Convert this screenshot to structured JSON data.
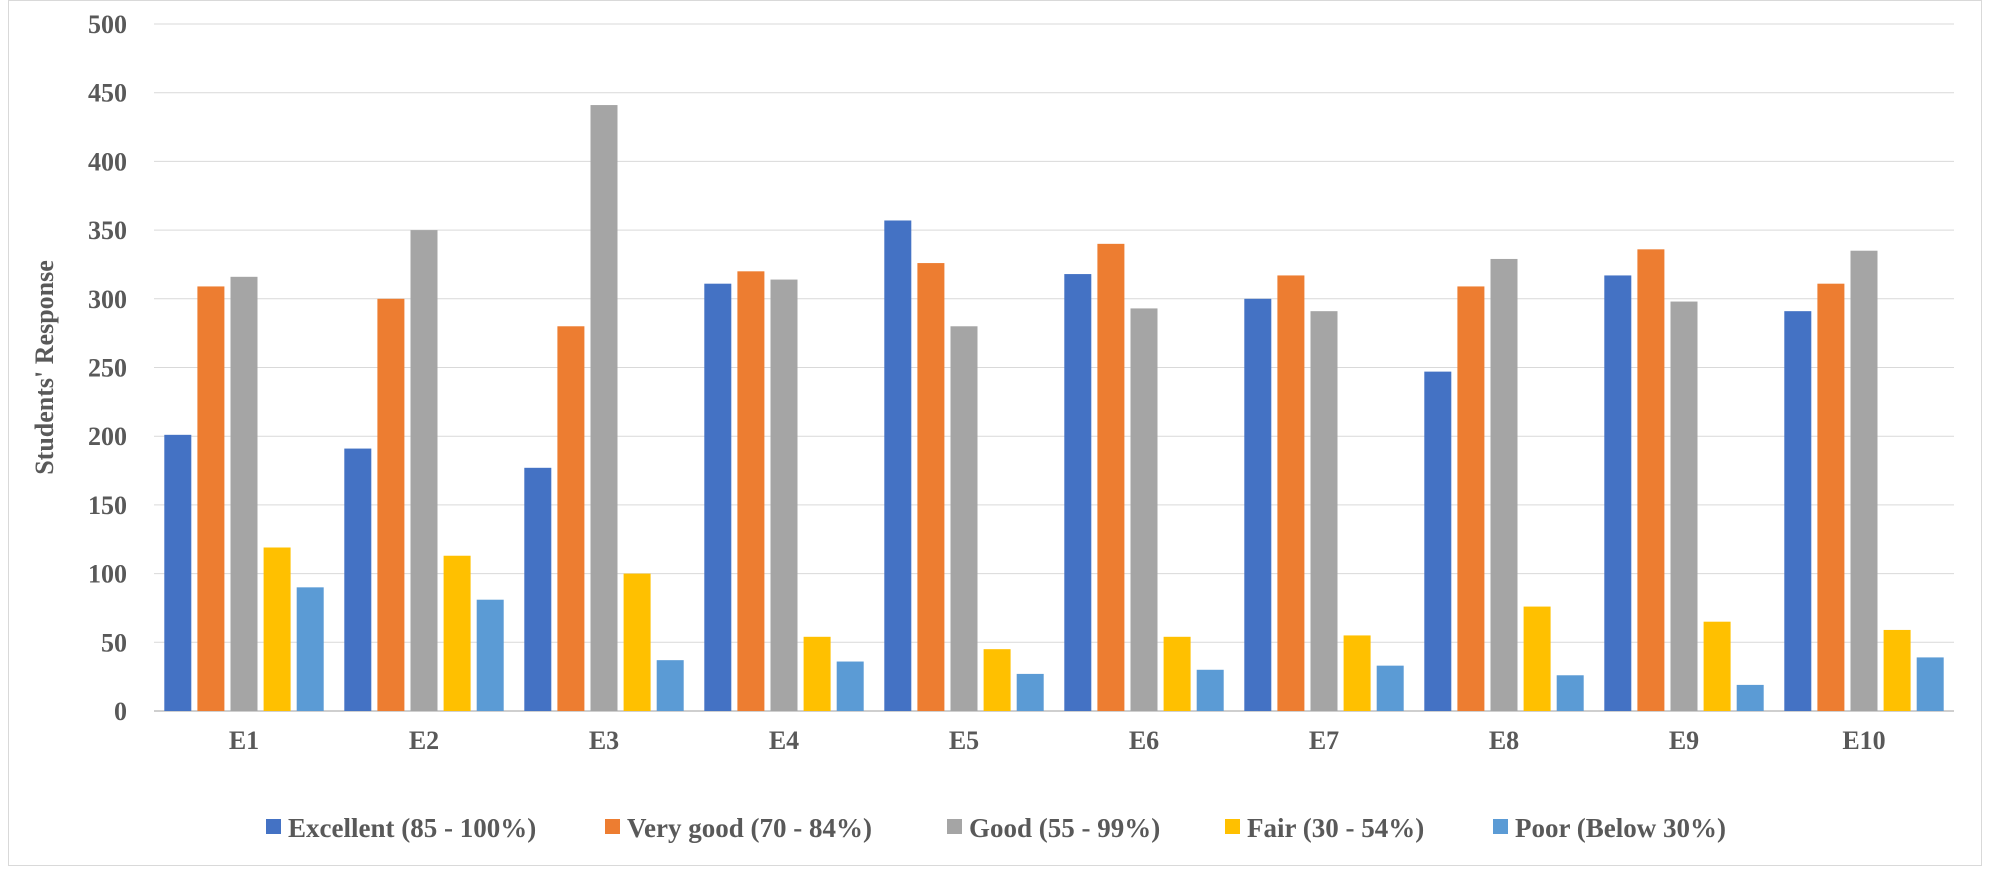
{
  "chart_data": {
    "type": "bar",
    "title": "",
    "xlabel": "",
    "ylabel": "Students' Response",
    "ylim": [
      0,
      500
    ],
    "yticks": [
      0,
      50,
      100,
      150,
      200,
      250,
      300,
      350,
      400,
      450,
      500
    ],
    "grid": true,
    "legend_position": "bottom",
    "categories": [
      "E1",
      "E2",
      "E3",
      "E4",
      "E5",
      "E6",
      "E7",
      "E8",
      "E9",
      "E10"
    ],
    "series": [
      {
        "name": "Excellent (85 - 100%)",
        "color": "#4472C4",
        "values": [
          201,
          191,
          177,
          311,
          357,
          318,
          300,
          247,
          317,
          291
        ]
      },
      {
        "name": "Very good (70 - 84%)",
        "color": "#ED7D31",
        "values": [
          309,
          300,
          280,
          320,
          326,
          340,
          317,
          309,
          336,
          311
        ]
      },
      {
        "name": "Good (55 - 99%)",
        "color": "#A5A5A5",
        "values": [
          316,
          350,
          441,
          314,
          280,
          293,
          291,
          329,
          298,
          335
        ]
      },
      {
        "name": "Fair (30 - 54%)",
        "color": "#FFC000",
        "values": [
          119,
          113,
          100,
          54,
          45,
          54,
          55,
          76,
          65,
          59
        ]
      },
      {
        "name": "Poor (Below 30%)",
        "color": "#5B9BD5",
        "values": [
          90,
          81,
          37,
          36,
          27,
          30,
          33,
          26,
          19,
          39
        ]
      }
    ]
  }
}
